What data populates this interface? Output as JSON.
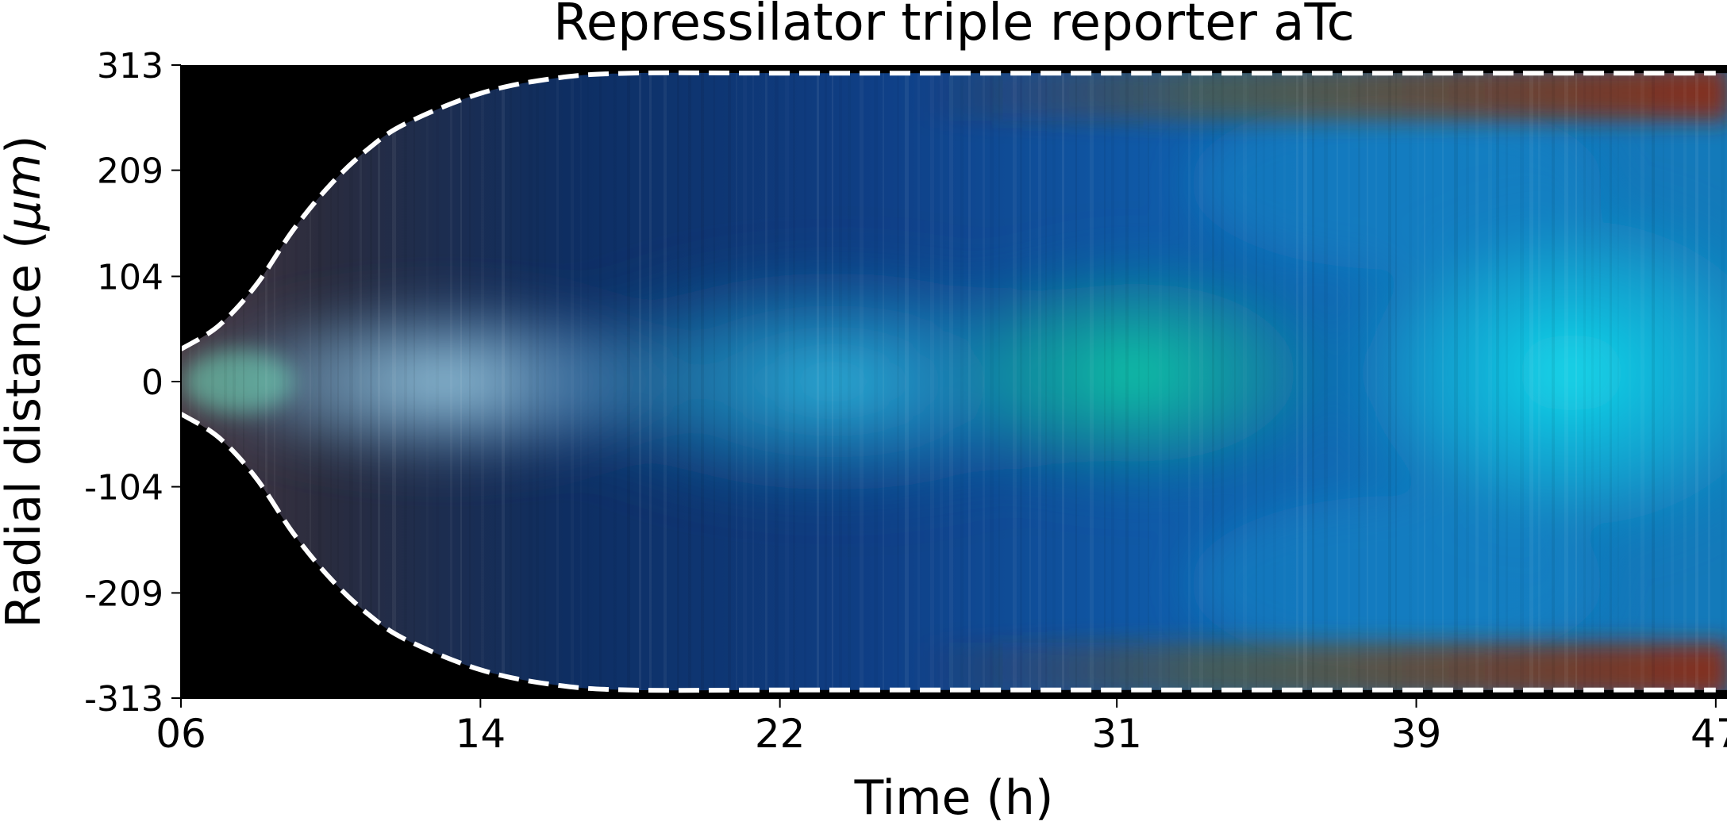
{
  "chart_data": {
    "type": "heatmap",
    "title": "Repressilator triple reporter aTc",
    "xlabel": "Time (h)",
    "ylabel_prefix": "Radial distance (",
    "ylabel_unit": "μm",
    "ylabel_suffix": ")",
    "x_range": [
      6,
      47.3
    ],
    "y_range": [
      -313,
      313
    ],
    "x_ticks": [
      {
        "value": 6,
        "label": "06"
      },
      {
        "value": 14,
        "label": "14"
      },
      {
        "value": 22,
        "label": "22"
      },
      {
        "value": 31,
        "label": "31"
      },
      {
        "value": 39,
        "label": "39"
      },
      {
        "value": 47,
        "label": "47"
      }
    ],
    "y_ticks": [
      {
        "value": 313,
        "label": "313"
      },
      {
        "value": 209,
        "label": "209"
      },
      {
        "value": 104,
        "label": "104"
      },
      {
        "value": 0,
        "label": "0"
      },
      {
        "value": -104,
        "label": "-104"
      },
      {
        "value": -209,
        "label": "-209"
      },
      {
        "value": -313,
        "label": "-313"
      }
    ],
    "channels": [
      "red",
      "green",
      "blue"
    ],
    "background_color": "#000000",
    "colony_edge": {
      "style": "white dashed line",
      "color": "#ffffff",
      "time_h": [
        6,
        7,
        8,
        9,
        10,
        11,
        12,
        14,
        16,
        18,
        22,
        31,
        39,
        47
      ],
      "radius_um": [
        32,
        55,
        95,
        150,
        195,
        230,
        255,
        285,
        300,
        305,
        305,
        305,
        305,
        305
      ]
    },
    "intensity_notes": "Center band cyan/teal (brightest near 31-33 h and 45-47 h); blue region widening over time; red/brown near colony edge after ~35 h"
  }
}
